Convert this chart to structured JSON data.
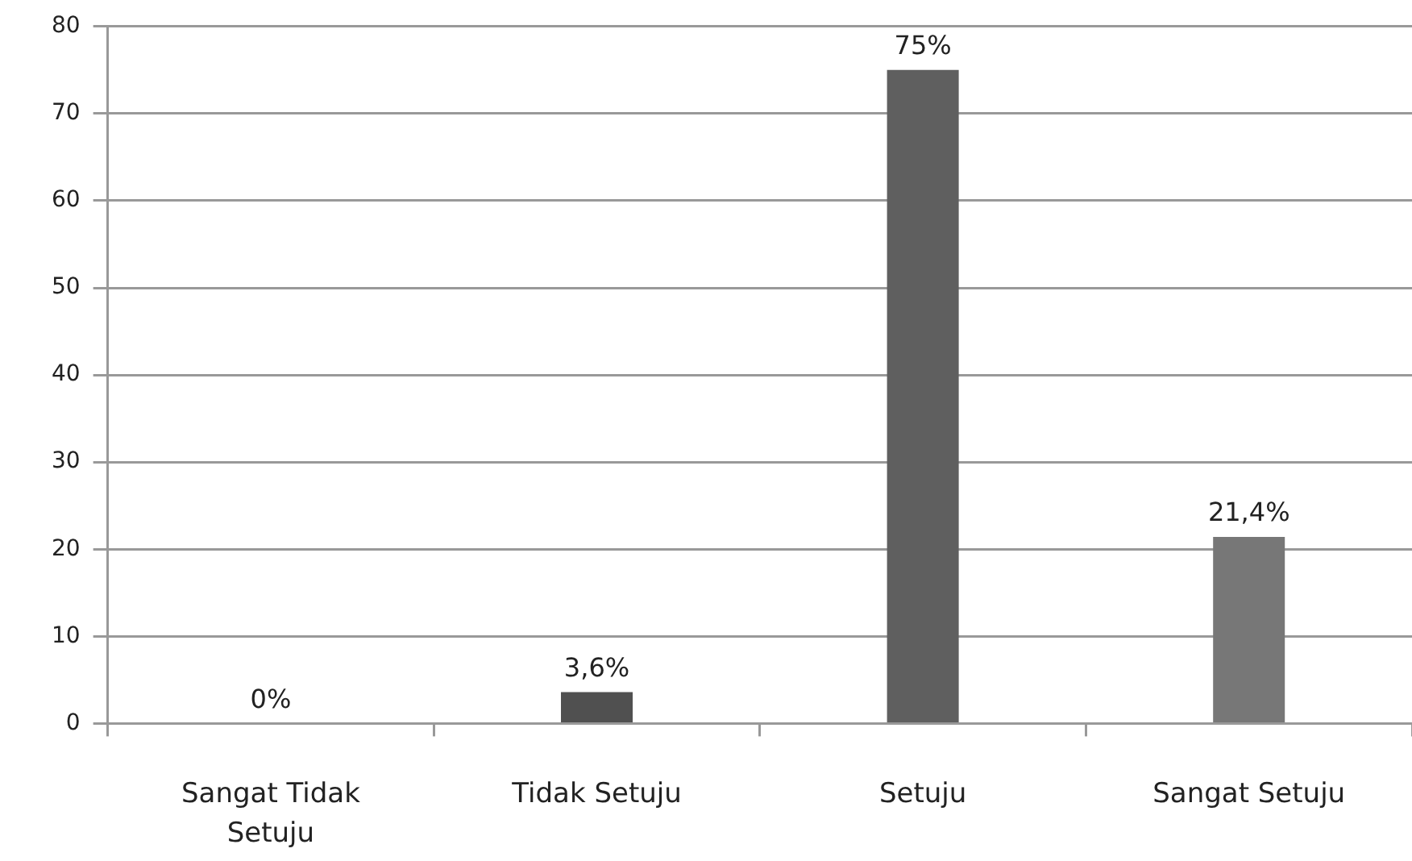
{
  "chart_data": {
    "type": "bar",
    "categories": [
      "Sangat Tidak Setuju",
      "Tidak Setuju",
      "Setuju",
      "Sangat Setuju"
    ],
    "values": [
      0,
      3.6,
      75,
      21.4
    ],
    "colors": [
      "#505050",
      "#505050",
      "#5f5f5f",
      "#777777"
    ],
    "value_labels": [
      "0%",
      "3,6%",
      "75%",
      "21,4%"
    ],
    "ylim": [
      0,
      80
    ],
    "yticks": [
      0,
      10,
      20,
      30,
      40,
      50,
      60,
      70,
      80
    ],
    "grid": "y"
  }
}
